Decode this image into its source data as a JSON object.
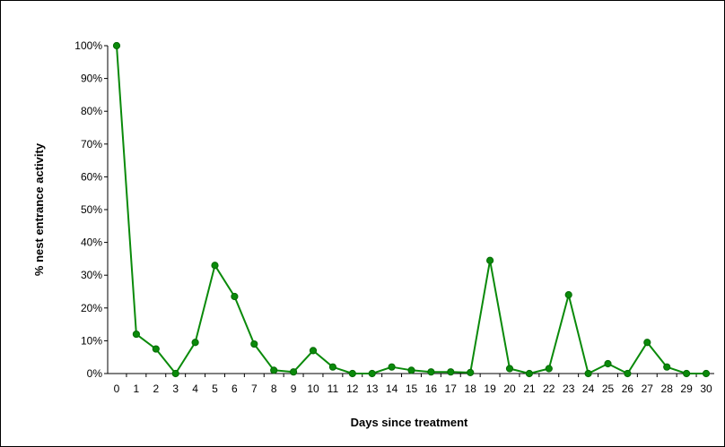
{
  "chart_data": {
    "type": "line",
    "title": "",
    "xlabel": "Days since treatment",
    "ylabel": "% nest entrance activity",
    "x": [
      0,
      1,
      2,
      3,
      4,
      5,
      6,
      7,
      8,
      9,
      10,
      11,
      12,
      13,
      14,
      15,
      16,
      17,
      18,
      19,
      20,
      21,
      22,
      23,
      24,
      25,
      26,
      27,
      28,
      29,
      30
    ],
    "series": [
      {
        "values": [
          100,
          12,
          7.5,
          0,
          9.5,
          33,
          23.5,
          9,
          1,
          0.5,
          7,
          2,
          0,
          0,
          2,
          1,
          0.5,
          0.5,
          0.3,
          34.5,
          1.5,
          0,
          1.5,
          24,
          0,
          3,
          0,
          9.5,
          2,
          0,
          0
        ]
      }
    ],
    "xtick_labels": [
      "0",
      "1",
      "2",
      "3",
      "4",
      "5",
      "6",
      "7",
      "8",
      "9",
      "10",
      "11",
      "12",
      "13",
      "14",
      "15",
      "16",
      "17",
      "18",
      "19",
      "20",
      "21",
      "22",
      "23",
      "24",
      "25",
      "26",
      "27",
      "28",
      "29",
      "30"
    ],
    "ytick_labels": [
      "0%",
      "10%",
      "20%",
      "30%",
      "40%",
      "50%",
      "60%",
      "70%",
      "80%",
      "90%",
      "100%"
    ],
    "ylim": [
      0,
      100
    ],
    "xlim": [
      0,
      30
    ],
    "grid": false,
    "legend": "none",
    "colors": {
      "series": "#0a8a0a",
      "axis": "#000000"
    }
  }
}
